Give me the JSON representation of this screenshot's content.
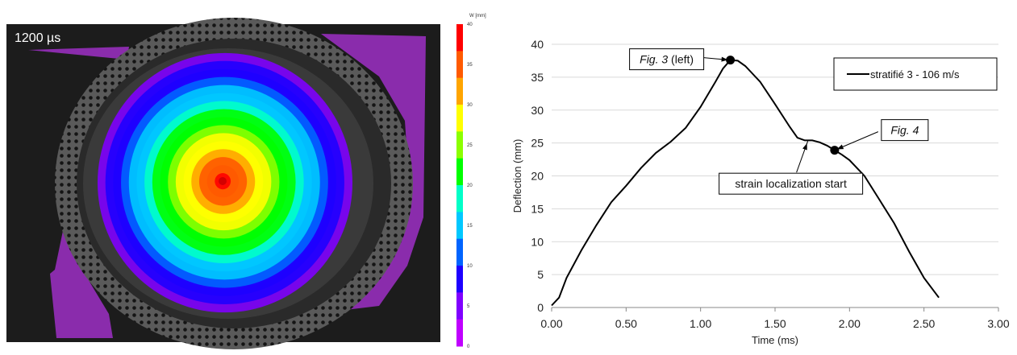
{
  "image_panel": {
    "time_label": "1200 µs",
    "colorbar": {
      "unit_label": "W [mm]",
      "ticks": [
        "40",
        "35",
        "30",
        "25",
        "20",
        "15",
        "10",
        "5",
        "0"
      ],
      "colors": [
        "#ff0000",
        "#ff5a00",
        "#ffa500",
        "#ffff00",
        "#8bff00",
        "#00ff00",
        "#00ffc8",
        "#00c8ff",
        "#0064ff",
        "#1e00ff",
        "#8000ff",
        "#c000ff"
      ]
    },
    "field": {
      "max_value_mm": 40,
      "min_value_mm": 0
    },
    "colors": {
      "background": "#1c1c1c",
      "mask": "#9a2fc0"
    }
  },
  "chart_data": {
    "type": "line",
    "xlabel": "Time (ms)",
    "ylabel": "Deflection (mm)",
    "xlim": [
      0,
      3
    ],
    "ylim": [
      0,
      40
    ],
    "x_ticks": [
      "0.00",
      "0.50",
      "1.00",
      "1.50",
      "2.00",
      "2.50",
      "3.00"
    ],
    "y_ticks": [
      "0",
      "5",
      "10",
      "15",
      "20",
      "25",
      "30",
      "35",
      "40"
    ],
    "grid": "horizontal",
    "legend_position": "top-right",
    "series": [
      {
        "name": "stratifié 3 - 106 m/s",
        "color": "#000000",
        "x": [
          0.0,
          0.05,
          0.1,
          0.2,
          0.3,
          0.4,
          0.5,
          0.6,
          0.7,
          0.8,
          0.9,
          1.0,
          1.1,
          1.15,
          1.2,
          1.25,
          1.3,
          1.4,
          1.5,
          1.6,
          1.65,
          1.7,
          1.75,
          1.8,
          1.85,
          1.9,
          1.95,
          2.0,
          2.1,
          2.2,
          2.3,
          2.4,
          2.5,
          2.6
        ],
        "y": [
          0.3,
          1.5,
          4.5,
          8.7,
          12.5,
          16.0,
          18.5,
          21.2,
          23.5,
          25.2,
          27.3,
          30.5,
          34.3,
          36.3,
          37.6,
          37.5,
          36.7,
          34.3,
          30.9,
          27.4,
          25.8,
          25.4,
          25.4,
          25.1,
          24.6,
          23.9,
          23.2,
          22.4,
          20.0,
          16.4,
          12.8,
          8.5,
          4.5,
          1.5
        ]
      }
    ],
    "markers": [
      {
        "x": 1.2,
        "y": 37.6
      },
      {
        "x": 1.9,
        "y": 23.9
      }
    ],
    "annotations": [
      {
        "text_italic": "Fig. 3",
        "text_normal": " (left)",
        "target_x": 1.2,
        "target_y": 37.6
      },
      {
        "text_italic": "Fig. 4",
        "text_normal": "",
        "target_x": 1.9,
        "target_y": 23.9
      },
      {
        "text_italic": "",
        "text_normal": "strain localization start",
        "target_x": 1.72,
        "target_y": 25.3
      }
    ]
  }
}
